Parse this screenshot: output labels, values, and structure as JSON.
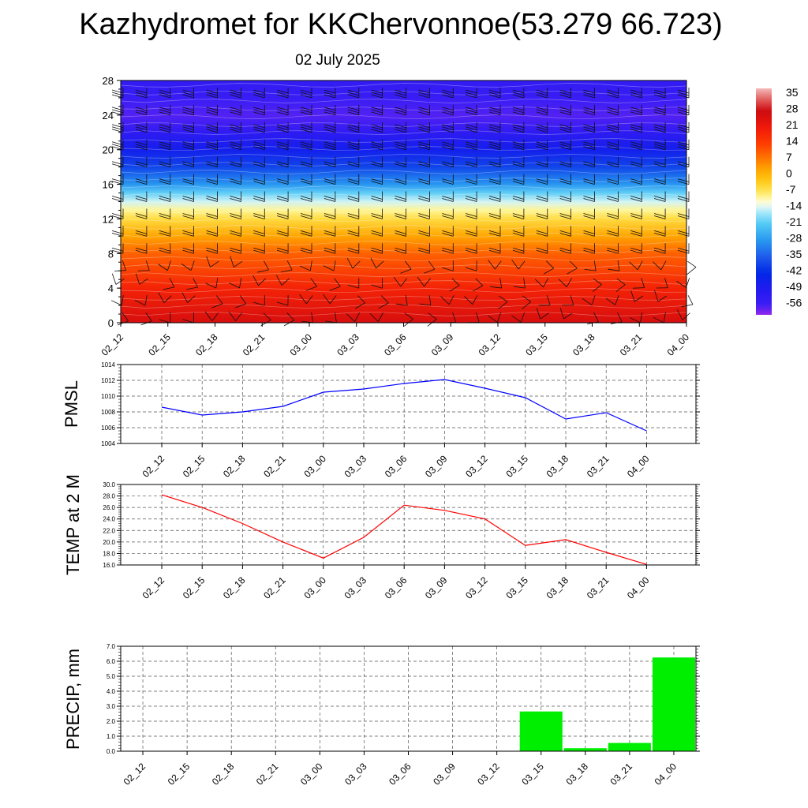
{
  "title": "Kazhydromet for KKChervonnoe(53.279 66.723)",
  "subtitle": "02 July 2025",
  "time_labels": [
    "02_12",
    "02_15",
    "02_18",
    "02_21",
    "03_00",
    "03_03",
    "03_06",
    "03_09",
    "03_12",
    "03_15",
    "03_18",
    "03_21",
    "04_00"
  ],
  "colors": {
    "pmsl_line": "#0000ff",
    "temp_line": "#ff0000",
    "precip_bar": "#00ee00",
    "grid": "#555555"
  },
  "chart_data": [
    {
      "type": "heatmap",
      "title": "",
      "xlabel": "",
      "ylabel": "",
      "x": [
        "02_12",
        "02_15",
        "02_18",
        "02_21",
        "03_00",
        "03_03",
        "03_06",
        "03_09",
        "03_12",
        "03_15",
        "03_18",
        "03_21",
        "04_00"
      ],
      "y_ticks": [
        "0",
        "4",
        "8",
        "12",
        "16",
        "20",
        "24",
        "28"
      ],
      "ylim": [
        0,
        28
      ],
      "colorbar": {
        "labels": [
          "35",
          "28",
          "21",
          "14",
          "7",
          "0",
          "-7",
          "-14",
          "-21",
          "-28",
          "-35",
          "-42",
          "-49",
          "-56"
        ],
        "range": [
          -60,
          38
        ]
      },
      "temperature_profile": {
        "heights": [
          0,
          4,
          8,
          10,
          12,
          13,
          14,
          15,
          16,
          18,
          20,
          22,
          24,
          26,
          28
        ],
        "values": [
          26,
          19,
          10,
          3,
          -5,
          -9,
          -14,
          -20,
          -28,
          -38,
          -46,
          -52,
          -57,
          -55,
          -53
        ]
      },
      "wind_barbs": "shown"
    },
    {
      "type": "line",
      "title": "",
      "ylabel": "PMSL",
      "ylim": [
        1004,
        1014
      ],
      "y_ticks": [
        "1004",
        "1006",
        "1008",
        "1010",
        "1012",
        "1014"
      ],
      "x": [
        "02_12",
        "02_15",
        "02_18",
        "02_21",
        "03_00",
        "03_03",
        "03_06",
        "03_09",
        "03_12",
        "03_15",
        "03_18",
        "03_21",
        "04_00"
      ],
      "values": [
        1008.6,
        1007.6,
        1008.0,
        1008.7,
        1010.5,
        1010.9,
        1011.6,
        1012.1,
        1011.0,
        1009.8,
        1007.1,
        1007.9,
        1005.6
      ],
      "grid": true
    },
    {
      "type": "line",
      "title": "",
      "ylabel": "TEMP at 2 M",
      "ylim": [
        16,
        30
      ],
      "y_ticks": [
        "16.0",
        "18.0",
        "20.0",
        "22.0",
        "24.0",
        "26.0",
        "28.0",
        "30.0"
      ],
      "x": [
        "02_12",
        "02_15",
        "02_18",
        "02_21",
        "03_00",
        "03_03",
        "03_06",
        "03_09",
        "03_12",
        "03_15",
        "03_18",
        "03_21",
        "04_00"
      ],
      "values": [
        28.2,
        26.0,
        23.2,
        20.0,
        17.2,
        20.8,
        26.4,
        25.5,
        24.0,
        19.4,
        20.4,
        18.2,
        16.1
      ],
      "grid": true
    },
    {
      "type": "bar",
      "title": "",
      "ylabel": "PRECIP, mm",
      "ylim": [
        0,
        7
      ],
      "y_ticks": [
        "0.0",
        "1.0",
        "2.0",
        "3.0",
        "4.0",
        "5.0",
        "6.0",
        "7.0"
      ],
      "categories": [
        "02_12",
        "02_15",
        "02_18",
        "02_21",
        "03_00",
        "03_03",
        "03_06",
        "03_09",
        "03_12",
        "03_15",
        "03_18",
        "03_21",
        "04_00"
      ],
      "values": [
        0,
        0,
        0,
        0,
        0,
        0,
        0,
        0,
        0,
        2.65,
        0.2,
        0.55,
        6.25
      ],
      "grid": true
    }
  ]
}
